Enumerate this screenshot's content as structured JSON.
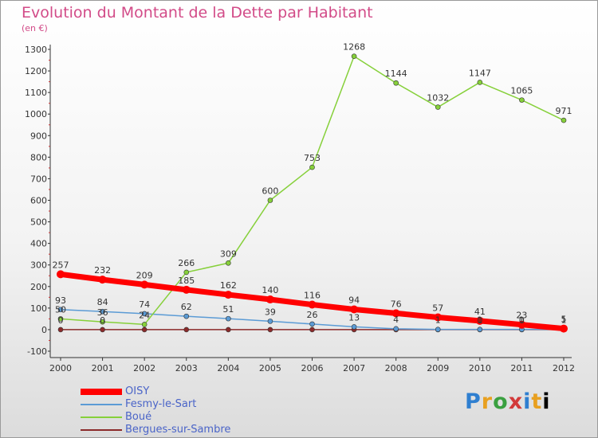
{
  "chart_data": {
    "type": "line",
    "title": "Evolution du Montant de la Dette par Habitant",
    "subtitle": "(en €)",
    "categories": [
      "2000",
      "2001",
      "2002",
      "2003",
      "2004",
      "2005",
      "2006",
      "2007",
      "2008",
      "2009",
      "2010",
      "2011",
      "2012"
    ],
    "y_ticks": [
      "-100",
      "0",
      "100",
      "200",
      "300",
      "400",
      "500",
      "600",
      "700",
      "800",
      "900",
      "1000",
      "1100",
      "1200",
      "1300"
    ],
    "ylim": [
      -100,
      1300
    ],
    "grid": false,
    "legend_placement": "bottom-left",
    "series": [
      {
        "name": "OISY",
        "color": "#ff0000",
        "values": [
          257,
          232,
          209,
          185,
          162,
          140,
          116,
          94,
          76,
          57,
          41,
          23,
          5
        ],
        "labels": [
          "257",
          "232",
          "209",
          "185",
          "162",
          "140",
          "116",
          "94",
          "76",
          "57",
          "41",
          "23",
          "5"
        ]
      },
      {
        "name": "Fesmy-le-Sart",
        "color": "#5b9bd5",
        "values": [
          93,
          84,
          74,
          62,
          51,
          39,
          26,
          13,
          4,
          1,
          1,
          1,
          1
        ],
        "labels": [
          "93",
          "84",
          "74",
          "62",
          "51",
          "39",
          "26",
          "13",
          "4",
          "1",
          "1",
          "1",
          "1"
        ]
      },
      {
        "name": "Boué",
        "color": "#86d03a",
        "values": [
          50,
          36,
          24,
          266,
          309,
          600,
          753,
          1268,
          1144,
          1032,
          1147,
          1065,
          971
        ],
        "labels": [
          "50",
          "36",
          "24",
          "266",
          "309",
          "600",
          "753",
          "1268",
          "1144",
          "1032",
          "1147",
          "1065",
          "971"
        ]
      },
      {
        "name": "Bergues-sur-Sambre",
        "color": "#8b2a2a",
        "values": [
          0,
          0,
          0,
          0,
          0,
          0,
          0,
          0,
          0,
          0,
          0,
          0,
          0
        ],
        "labels": [
          "0",
          "0",
          "",
          "",
          "",
          "",
          "",
          "",
          "",
          "",
          "0",
          "0",
          ""
        ]
      }
    ]
  },
  "logo": {
    "letters": [
      "P",
      "r",
      "o",
      "x",
      "i",
      "t",
      "i"
    ]
  }
}
